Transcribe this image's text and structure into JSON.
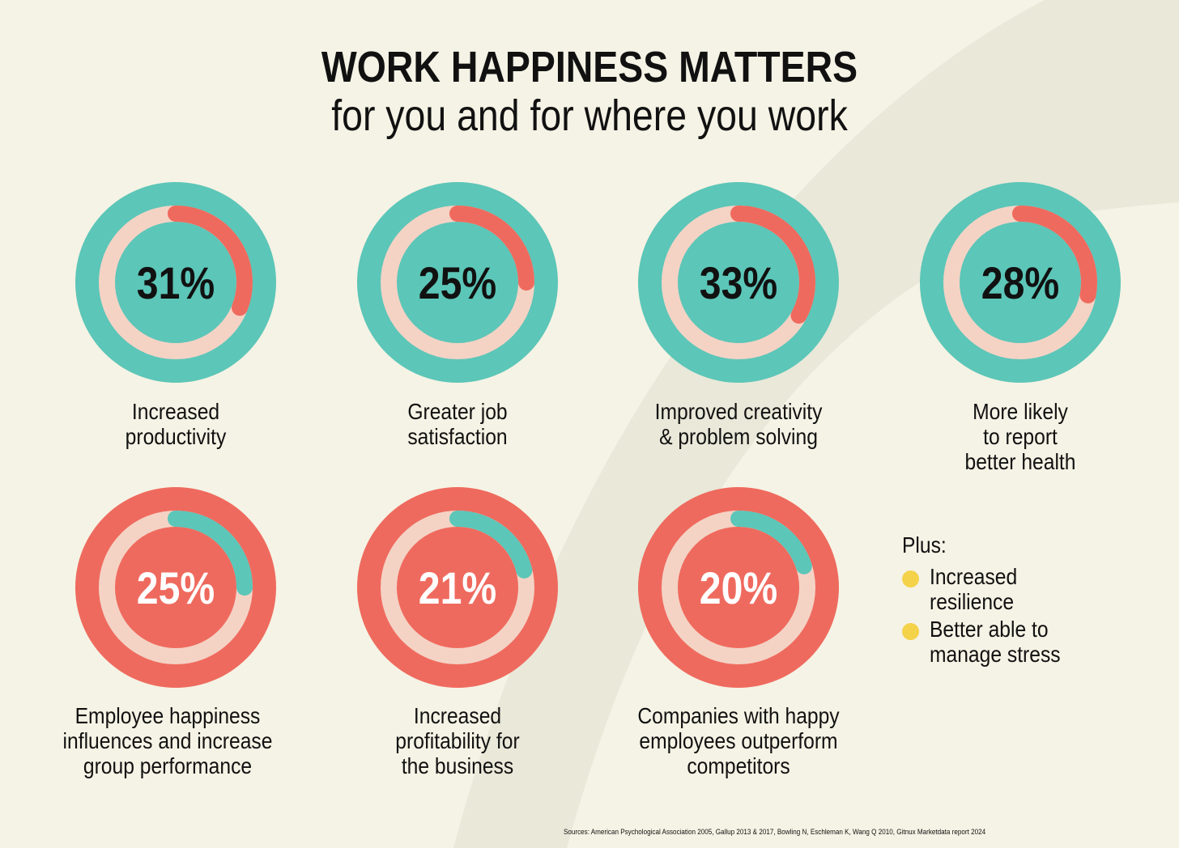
{
  "header": {
    "title": "WORK HAPPINESS MATTERS",
    "subtitle": "for you and for where you work"
  },
  "colors": {
    "background": "#f5f3e5",
    "background_shape": "#e8e7d8",
    "teal": "#5cc6b8",
    "coral": "#ef6a5e",
    "ring_track": "#f4d3c5",
    "bullet_yellow": "#f4d24a"
  },
  "chart_data": [
    {
      "type": "pie",
      "value": 31,
      "value_label": "31%",
      "label": "Increased\nproductivity",
      "theme": "teal"
    },
    {
      "type": "pie",
      "value": 25,
      "value_label": "25%",
      "label": "Greater job\nsatisfaction",
      "theme": "teal"
    },
    {
      "type": "pie",
      "value": 33,
      "value_label": "33%",
      "label": "Improved creativity\n& problem solving",
      "theme": "teal"
    },
    {
      "type": "pie",
      "value": 28,
      "value_label": "28%",
      "label": "More likely\nto report\nbetter health",
      "theme": "teal"
    },
    {
      "type": "pie",
      "value": 25,
      "value_label": "25%",
      "label": "Employee happiness\ninfluences and increase\ngroup performance",
      "theme": "coral"
    },
    {
      "type": "pie",
      "value": 21,
      "value_label": "21%",
      "label": "Increased\nprofitability for\nthe business",
      "theme": "coral"
    },
    {
      "type": "pie",
      "value": 20,
      "value_label": "20%",
      "label": "Companies with happy\nemployees outperform\ncompetitors",
      "theme": "coral"
    }
  ],
  "plus": {
    "heading": "Plus:",
    "items": [
      "Increased\nresilience",
      "Better able to\nmanage stress"
    ]
  },
  "sources": "Sources: American Psychological Association 2005, Gallup 2013 & 2017, Bowling N, Eschleman K, Wang Q 2010, Gitnux Marketdata report 2024"
}
